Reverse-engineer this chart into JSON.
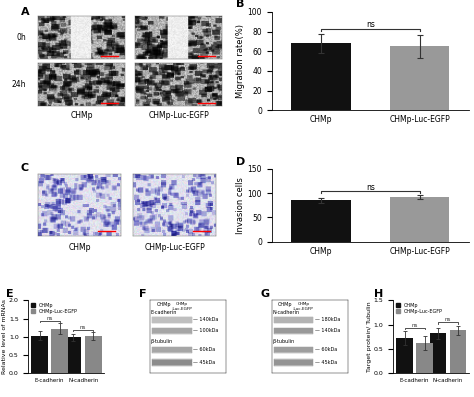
{
  "panel_B": {
    "categories": [
      "CHMp",
      "CHMp-Luc-EGFP"
    ],
    "values": [
      68,
      65
    ],
    "errors": [
      10,
      12
    ],
    "colors": [
      "#111111",
      "#999999"
    ],
    "ylabel": "Migration rate(%)",
    "ylim": [
      0,
      100
    ],
    "yticks": [
      0,
      20,
      40,
      60,
      80,
      100
    ],
    "sig_label": "ns",
    "label": "B"
  },
  "panel_D": {
    "categories": [
      "CHMp",
      "CHMp-Luc-EGFP"
    ],
    "values": [
      85,
      92
    ],
    "errors": [
      6,
      5
    ],
    "colors": [
      "#111111",
      "#999999"
    ],
    "ylabel": "Invasion cells",
    "ylim": [
      0,
      150
    ],
    "yticks": [
      0,
      50,
      100,
      150
    ],
    "sig_label": "ns",
    "label": "D"
  },
  "panel_E": {
    "group_labels": [
      "E-cadherin",
      "N-cadherin"
    ],
    "bar_labels": [
      "CHMp",
      "CHMp-Luc-EGFP"
    ],
    "values": [
      [
        1.03,
        0.98
      ],
      [
        1.22,
        1.01
      ]
    ],
    "errors": [
      [
        0.12,
        0.1
      ],
      [
        0.15,
        0.11
      ]
    ],
    "colors": [
      "#111111",
      "#888888"
    ],
    "ylabel": "Relative level of mRNAs",
    "ylim": [
      0,
      2.0
    ],
    "yticks": [
      0.0,
      0.5,
      1.0,
      1.5,
      2.0
    ],
    "label": "E"
  },
  "panel_H": {
    "group_labels": [
      "E-cadherin",
      "N-cadherin"
    ],
    "bar_labels": [
      "CHMp",
      "CHMp-Luc-EGFP"
    ],
    "values": [
      [
        0.72,
        0.82
      ],
      [
        0.62,
        0.88
      ]
    ],
    "errors": [
      [
        0.15,
        0.12
      ],
      [
        0.14,
        0.1
      ]
    ],
    "colors": [
      "#111111",
      "#888888"
    ],
    "ylabel": "Target protein/ Tubulin",
    "ylim": [
      0,
      1.5
    ],
    "yticks": [
      0.0,
      0.5,
      1.0,
      1.5
    ],
    "label": "H"
  },
  "bg_color": "#ffffff",
  "font_size": 6,
  "tick_font_size": 5.5,
  "panel_A_row_labels": [
    "0h",
    "24h"
  ],
  "panel_AC_col_labels": [
    "CHMp",
    "CHMp-Luc-EGFP"
  ],
  "panel_F_labels": [
    "E-cadherin",
    "β-tubulin"
  ],
  "panel_F_kda": [
    "140kDa",
    "100kDa",
    "60kDa",
    "45kDa"
  ],
  "panel_G_labels": [
    "N-cadherin",
    "β-tubulin"
  ],
  "panel_G_kda": [
    "180kDa",
    "140kDa",
    "60kDa",
    "45kDa"
  ]
}
